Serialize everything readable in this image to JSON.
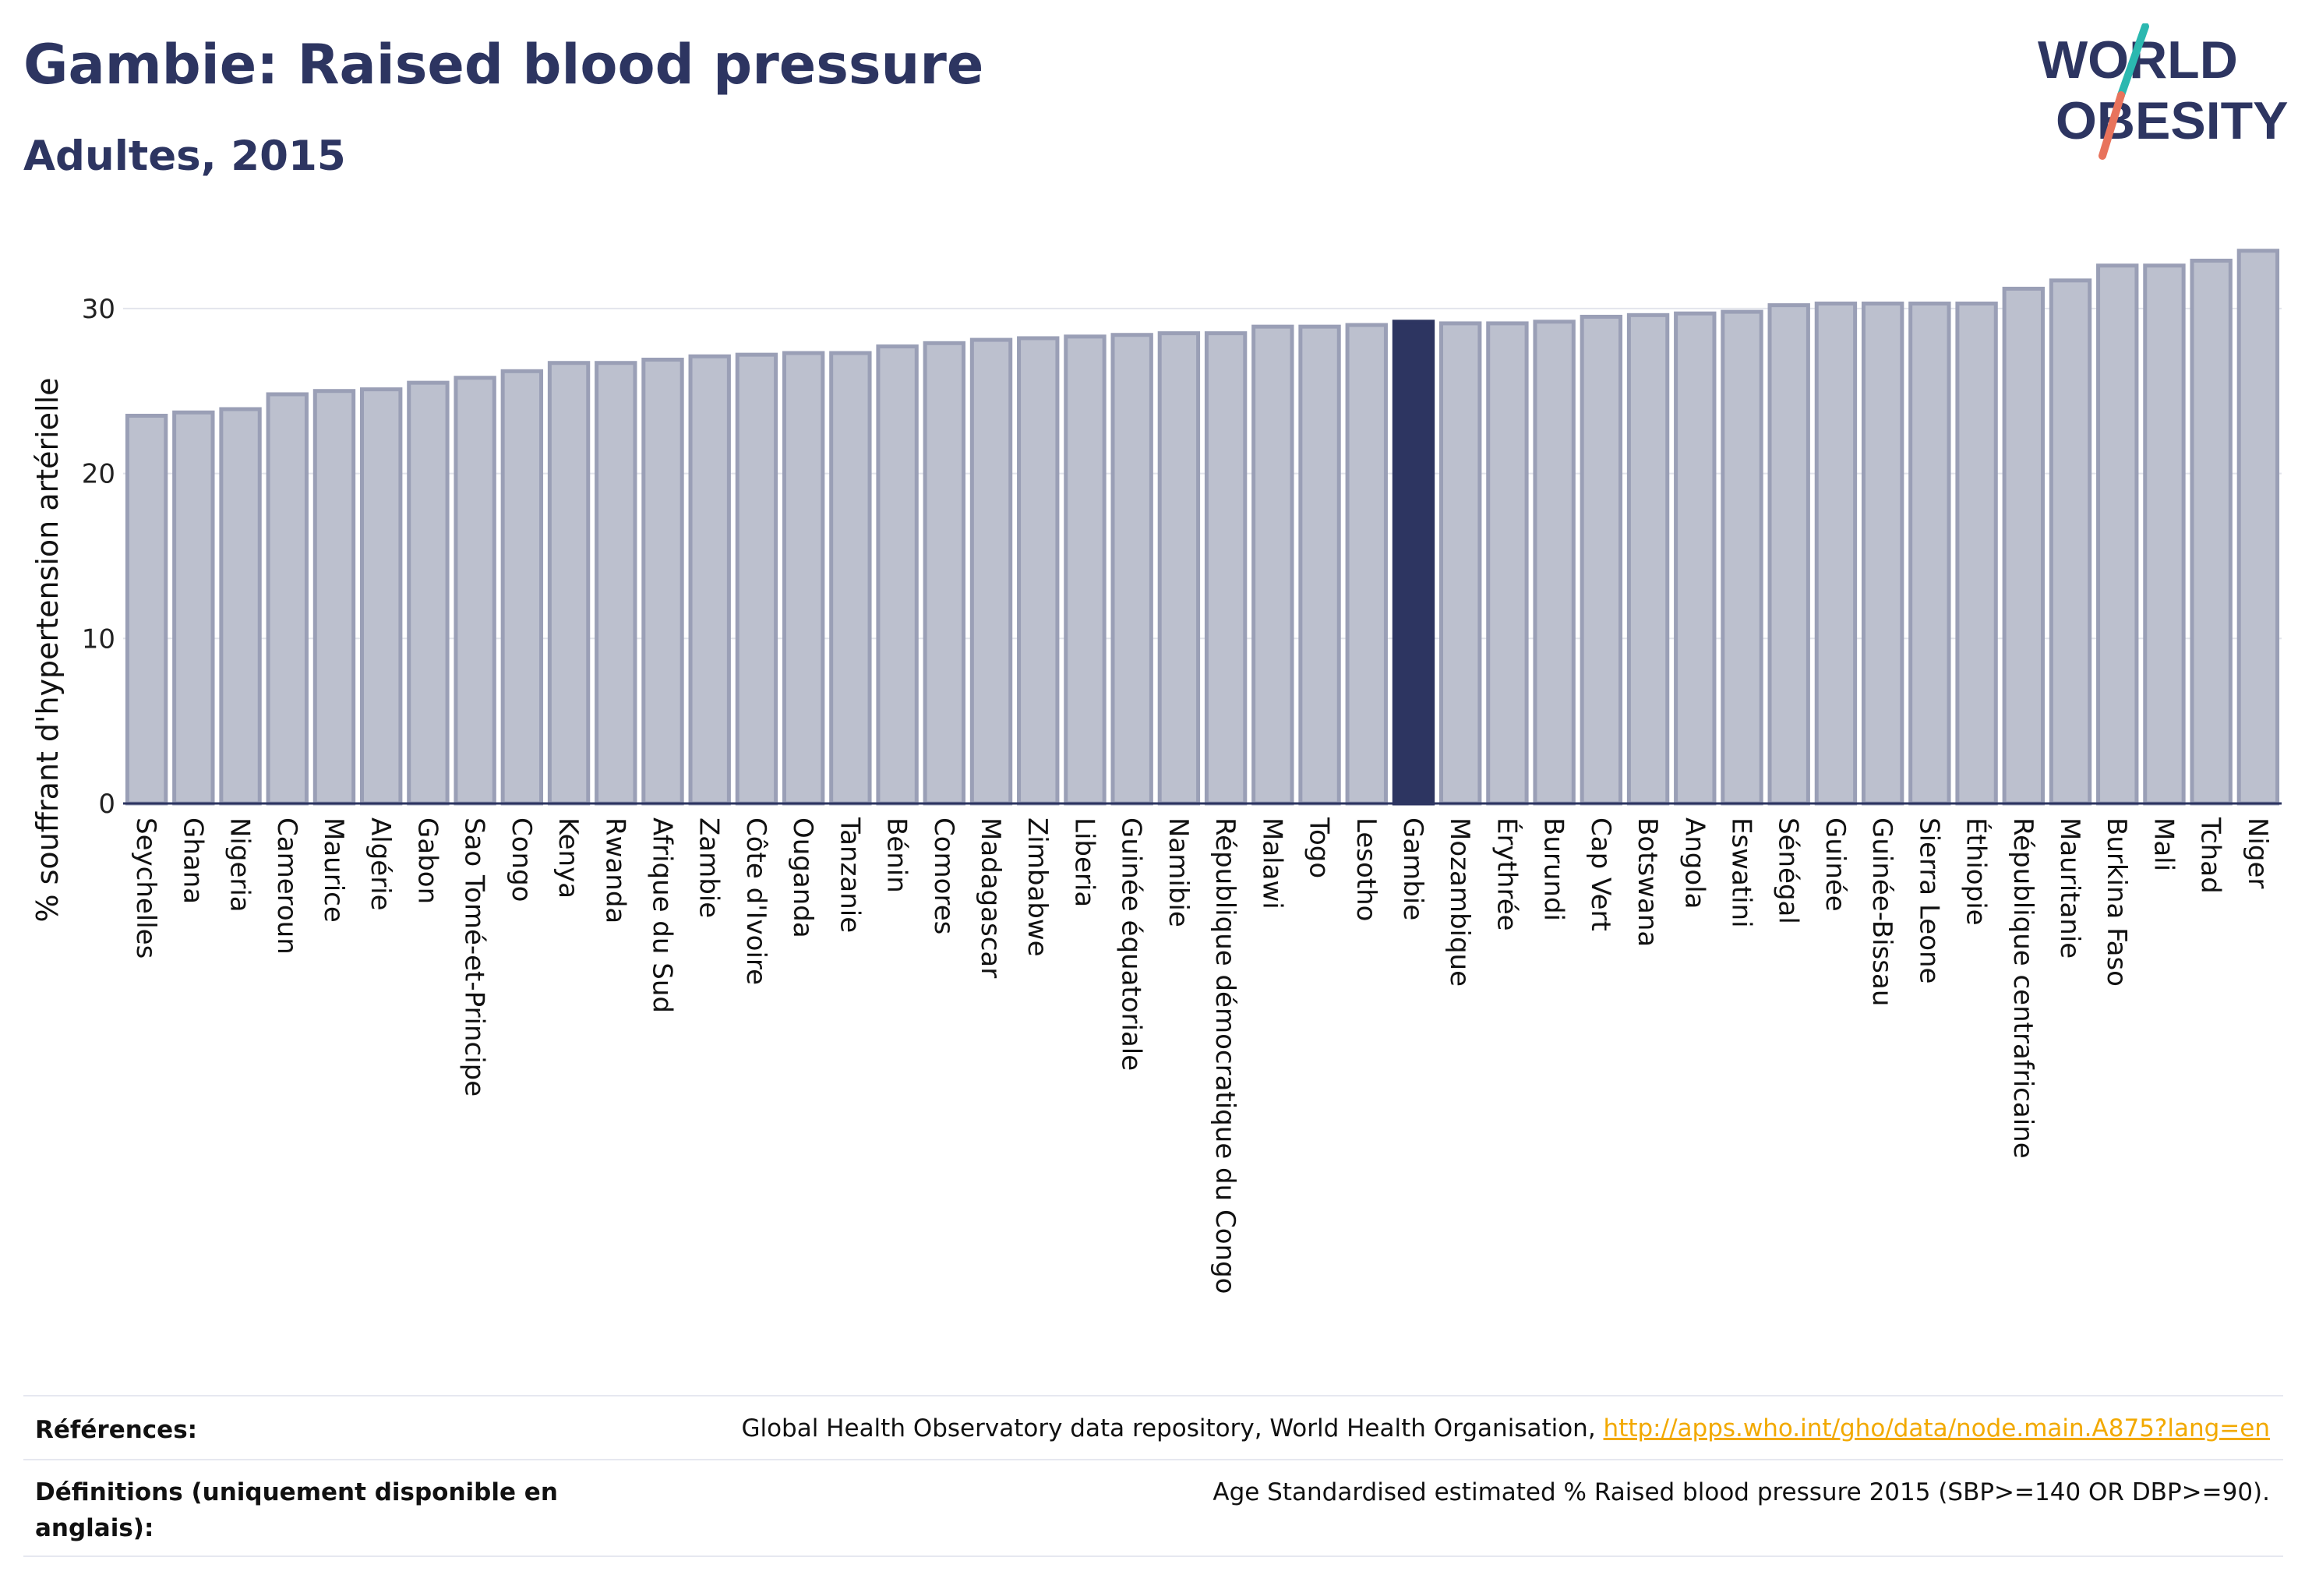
{
  "header": {
    "title": "Gambie: Raised blood pressure",
    "subtitle": "Adultes, 2015",
    "logo_line1": "WORLD",
    "logo_line2": "OBESITY"
  },
  "colors": {
    "title": "#2d3561",
    "bar_fill": "#bcc0ce",
    "bar_stroke": "#9a9fb6",
    "highlight": "#2d3561",
    "grid": "#e3e5ec",
    "link": "#f2a900",
    "logo_teal": "#2bb8b0",
    "logo_coral": "#e8735c"
  },
  "chart_data": {
    "type": "bar",
    "ylabel": "% souffrant d'hypertension artérielle",
    "ylim": [
      0,
      35
    ],
    "yticks": [
      0,
      10,
      20,
      30
    ],
    "grid": true,
    "highlight": "Gambie",
    "categories": [
      "Seychelles",
      "Ghana",
      "Nigeria",
      "Cameroun",
      "Maurice",
      "Algérie",
      "Gabon",
      "Sao Tomé-et-Principe",
      "Congo",
      "Kenya",
      "Rwanda",
      "Afrique du Sud",
      "Zambie",
      "Côte d'Ivoire",
      "Ouganda",
      "Tanzanie",
      "Bénin",
      "Comores",
      "Madagascar",
      "Zimbabwe",
      "Liberia",
      "Guinée équatoriale",
      "Namibie",
      "République démocratique du Congo",
      "Malawi",
      "Togo",
      "Lesotho",
      "Gambie",
      "Mozambique",
      "Érythrée",
      "Burundi",
      "Cap Vert",
      "Botswana",
      "Angola",
      "Eswatini",
      "Sénégal",
      "Guinée",
      "Guinée-Bissau",
      "Sierra Leone",
      "Éthiopie",
      "République centrafricaine",
      "Mauritanie",
      "Burkina Faso",
      "Mali",
      "Tchad",
      "Niger"
    ],
    "values": [
      23.5,
      23.7,
      23.9,
      24.8,
      25.0,
      25.1,
      25.5,
      25.8,
      26.2,
      26.7,
      26.7,
      26.9,
      27.1,
      27.2,
      27.3,
      27.3,
      27.7,
      27.9,
      28.1,
      28.2,
      28.3,
      28.4,
      28.5,
      28.5,
      28.9,
      28.9,
      29.0,
      29.2,
      29.1,
      29.1,
      29.2,
      29.5,
      29.6,
      29.7,
      29.8,
      30.2,
      30.3,
      30.3,
      30.3,
      30.3,
      31.2,
      31.7,
      32.6,
      32.6,
      32.9,
      33.5
    ]
  },
  "references": {
    "label": "Références:",
    "source": "Global Health Observatory data repository, World Health Organisation,",
    "link": "http://apps.who.int/gho/data/node.main.A875?lang=en"
  },
  "definitions": {
    "label": "Définitions (uniquement disponible en anglais):",
    "text": "Age Standardised estimated % Raised blood pressure 2015 (SBP>=140 OR DBP>=90)."
  }
}
